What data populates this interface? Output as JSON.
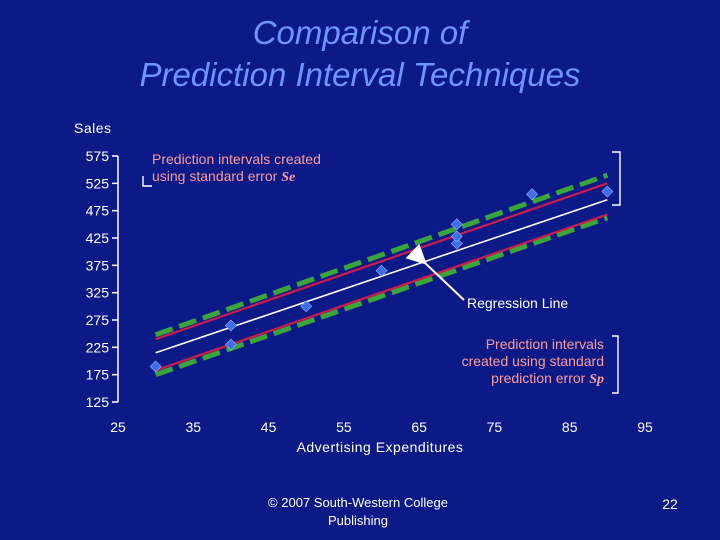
{
  "title_line1": "Comparison of",
  "title_line2": "Prediction Interval Techniques",
  "footer_line1": "© 2007 South-Western College",
  "footer_line2": "Publishing",
  "page_number": "22",
  "colors": {
    "background": "#0b1a86",
    "title": "#6f93ff",
    "regression_line": "#ffffff",
    "se_interval": "#d11a4c",
    "sp_interval": "#3aa53a",
    "points": "#3d6ee8"
  },
  "chart_data": {
    "type": "scatter",
    "title": "",
    "xlabel": "Advertising Expenditures",
    "ylabel": "Sales",
    "xlim": [
      25,
      95
    ],
    "ylim": [
      125,
      575
    ],
    "x_ticks": [
      "25",
      "35",
      "45",
      "55",
      "65",
      "75",
      "85",
      "95"
    ],
    "y_ticks": [
      "575",
      "525",
      "475",
      "425",
      "375",
      "325",
      "275",
      "225",
      "175",
      "125"
    ],
    "points": [
      {
        "x": 30,
        "y": 190
      },
      {
        "x": 40,
        "y": 230
      },
      {
        "x": 40,
        "y": 265
      },
      {
        "x": 50,
        "y": 300
      },
      {
        "x": 60,
        "y": 365
      },
      {
        "x": 70,
        "y": 415
      },
      {
        "x": 70,
        "y": 428
      },
      {
        "x": 70,
        "y": 450
      },
      {
        "x": 80,
        "y": 505
      },
      {
        "x": 90,
        "y": 510
      }
    ],
    "regression_line": {
      "x": [
        30,
        90
      ],
      "y": [
        215,
        495
      ]
    },
    "se_upper": {
      "x": [
        30,
        90
      ],
      "y": [
        240,
        525
      ]
    },
    "se_lower": {
      "x": [
        30,
        90
      ],
      "y": [
        183,
        468
      ]
    },
    "sp_upper": {
      "x": [
        30,
        90
      ],
      "y": [
        248,
        540
      ]
    },
    "sp_lower": {
      "x": [
        30,
        90
      ],
      "y": [
        175,
        462
      ]
    },
    "annotations": {
      "se_text": "Prediction intervals created using standard error",
      "se_symbol": "Se",
      "sp_text": "Prediction intervals created using standard prediction error",
      "sp_symbol": "Sp",
      "regression_label": "Regression Line"
    }
  }
}
